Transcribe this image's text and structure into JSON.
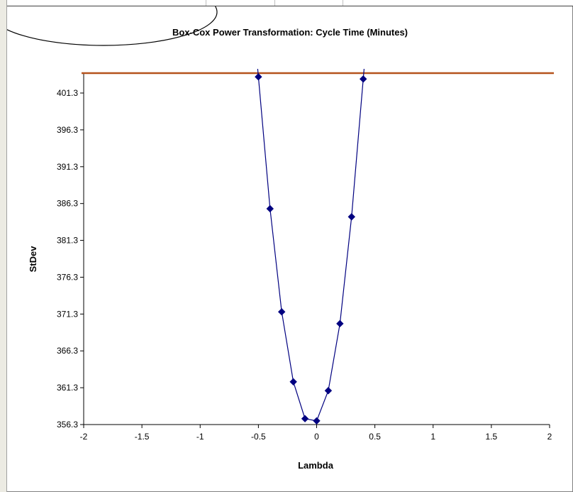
{
  "chart_data": {
    "type": "scatter",
    "title": "Box-Cox Power Transformation: Cycle Time (Minutes)",
    "xlabel": "Lambda",
    "ylabel": "StDev",
    "xlim": [
      -2,
      2
    ],
    "ylim": [
      356.3,
      404.0
    ],
    "x_ticks": [
      -2,
      -1.5,
      -1,
      -0.5,
      0,
      0.5,
      1,
      1.5,
      2
    ],
    "x_tick_labels": [
      "-2",
      "-1.5",
      "-1",
      "-0.5",
      "0",
      "0.5",
      "1",
      "1.5",
      "2"
    ],
    "y_ticks": [
      356.3,
      361.3,
      366.3,
      371.3,
      376.3,
      381.3,
      386.3,
      391.3,
      396.3,
      401.3
    ],
    "y_tick_labels": [
      "356.3",
      "361.3",
      "366.3",
      "371.3",
      "376.3",
      "381.3",
      "386.3",
      "391.3",
      "396.3",
      "401.3"
    ],
    "series": [
      {
        "x": [
          -0.5,
          -0.4,
          -0.3,
          -0.2,
          -0.1,
          0,
          0.1,
          0.2,
          0.3,
          0.4
        ],
        "y": [
          403.5,
          385.6,
          371.6,
          362.1,
          357.1,
          356.8,
          360.9,
          370.0,
          384.5,
          403.2
        ],
        "color": "#000080",
        "marker": "diamond"
      }
    ],
    "reference_line": {
      "y": 404.0,
      "color": "#b5521d"
    },
    "curve_extends_above_plot": true,
    "grid": false,
    "legend": "none"
  }
}
